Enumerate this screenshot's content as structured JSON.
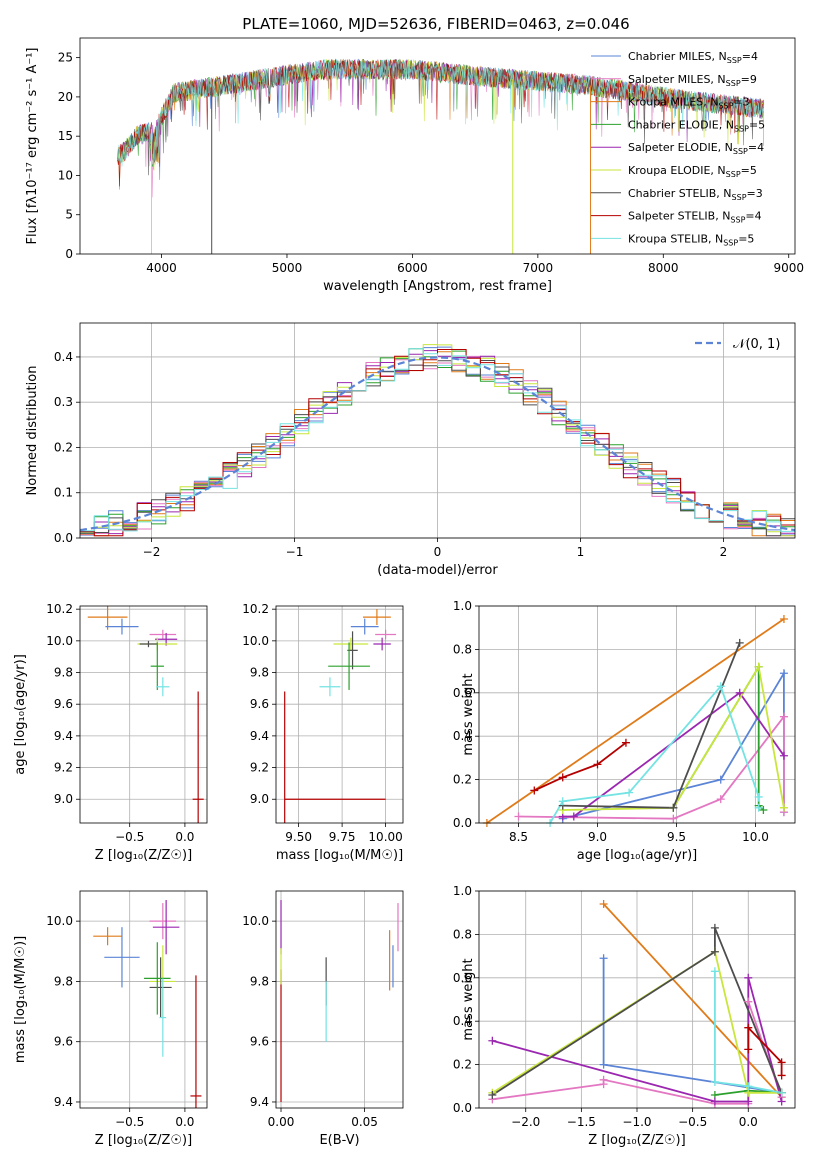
{
  "colors": {
    "Chabrier MILES": "#5b84d6",
    "Salpeter MILES": "#e377c2",
    "Kroupa MILES": "#e07b1a",
    "Chabrier ELODIE": "#2ca02c",
    "Salpeter ELODIE": "#9b27b0",
    "Kroupa ELODIE": "#c8e63c",
    "Chabrier STELIB": "#4d4d4d",
    "Salpeter STELIB": "#b40000",
    "Kroupa STELIB": "#74e3e3"
  },
  "chart_data": [
    {
      "id": "spectrum",
      "type": "line",
      "title": "PLATE=1060, MJD=52636, FIBERID=0463, z=0.046",
      "xlabel": "wavelength [Angstrom, rest frame]",
      "ylabel": "Flux [fλ10⁻¹⁷ erg cm⁻² s⁻¹ A⁻¹]",
      "xlim": [
        3350,
        9050
      ],
      "ylim": [
        0,
        27.5
      ],
      "xticks": [
        4000,
        5000,
        6000,
        7000,
        8000,
        9000
      ],
      "yticks": [
        0,
        5,
        10,
        15,
        20,
        25
      ],
      "legend_position": "top-right",
      "legend": [
        {
          "name": "Chabrier MILES",
          "label": "Chabrier MILES, N",
          "sub": "SSP",
          "tail": "=4"
        },
        {
          "name": "Salpeter MILES",
          "label": "Salpeter MILES, N",
          "sub": "SSP",
          "tail": "=9"
        },
        {
          "name": "Kroupa MILES",
          "label": "Kroupa MILES, N",
          "sub": "SSP",
          "tail": "=3"
        },
        {
          "name": "Chabrier ELODIE",
          "label": "Chabrier ELODIE, N",
          "sub": "SSP",
          "tail": "=5"
        },
        {
          "name": "Salpeter ELODIE",
          "label": "Salpeter ELODIE, N",
          "sub": "SSP",
          "tail": "=4"
        },
        {
          "name": "Kroupa ELODIE",
          "label": "Kroupa ELODIE, N",
          "sub": "SSP",
          "tail": "=5"
        },
        {
          "name": "Chabrier STELIB",
          "label": "Chabrier STELIB, N",
          "sub": "SSP",
          "tail": "=3"
        },
        {
          "name": "Salpeter STELIB",
          "label": "Salpeter STELIB, N",
          "sub": "SSP",
          "tail": "=4"
        },
        {
          "name": "Kroupa STELIB",
          "label": "Kroupa STELIB, N",
          "sub": "SSP",
          "tail": "=5"
        }
      ],
      "continuum": {
        "x": [
          3650,
          3700,
          3800,
          3900,
          4000,
          4100,
          4300,
          4500,
          4700,
          5000,
          5300,
          5600,
          6000,
          6300,
          6600,
          7000,
          7400,
          7800,
          8200,
          8800
        ],
        "y": [
          12.5,
          13,
          15,
          15.5,
          17.5,
          20.5,
          21,
          21.5,
          22,
          22.8,
          23.5,
          23.5,
          23.5,
          23,
          22.5,
          22,
          21.5,
          20.5,
          19.5,
          18.5
        ]
      },
      "range": [
        3650,
        8800
      ],
      "drops": [
        {
          "name": "Kroupa ELODIE",
          "x": 3920,
          "to": 0
        },
        {
          "name": "Chabrier STELIB",
          "x": 4400,
          "to": 0
        },
        {
          "name": "Kroupa ELODIE",
          "x": 6800,
          "to": 0
        },
        {
          "name": "Kroupa MILES",
          "x": 7420,
          "to": 0
        }
      ]
    },
    {
      "id": "residual-hist",
      "type": "line",
      "xlabel": "(data-model)/error",
      "ylabel": "Normed distribution",
      "xlim": [
        -2.5,
        2.5
      ],
      "ylim": [
        0,
        0.475
      ],
      "xticks": [
        -2,
        -1,
        0,
        1,
        2
      ],
      "xticklabels": [
        "−2",
        "−1",
        "0",
        "1",
        "2"
      ],
      "yticks": [
        0.0,
        0.1,
        0.2,
        0.3,
        0.4
      ],
      "yticklabels": [
        "0.0",
        "0.1",
        "0.2",
        "0.3",
        "0.4"
      ],
      "bin_width": 0.1,
      "bin_start": -2.5,
      "gaussian_label": "𝒩(0, 1)",
      "gaussian_color": "#5b84d6"
    },
    {
      "id": "age-vs-Z",
      "type": "scatter",
      "xlabel": "Z [log₁₀(Z/Z☉)]",
      "ylabel": "age  [log₁₀(age/yr)]",
      "xlim": [
        -0.95,
        0.2
      ],
      "ylim": [
        8.85,
        10.22
      ],
      "xticks": [
        -0.5,
        0.0
      ],
      "xticklabels": [
        "−0.5",
        "0.0"
      ],
      "yticks": [
        9.0,
        9.2,
        9.4,
        9.6,
        9.8,
        10.0,
        10.2
      ],
      "yticklabels": [
        "9.0",
        "9.2",
        "9.4",
        "9.6",
        "9.8",
        "10.0",
        "10.2"
      ],
      "points": [
        {
          "name": "Kroupa MILES",
          "x": -0.7,
          "y": 10.15,
          "xerr": 0.18,
          "yerr": 0.08
        },
        {
          "name": "Chabrier MILES",
          "x": -0.57,
          "y": 10.09,
          "xerr": 0.15,
          "yerr": 0.05
        },
        {
          "name": "Salpeter MILES",
          "x": -0.2,
          "y": 10.04,
          "xerr": 0.12,
          "yerr": 0.03
        },
        {
          "name": "Salpeter ELODIE",
          "x": -0.17,
          "y": 10.01,
          "xerr": 0.1,
          "yerr": 0.04
        },
        {
          "name": "Kroupa ELODIE",
          "x": -0.25,
          "y": 9.98,
          "xerr": 0.18,
          "yerr": 0.04
        },
        {
          "name": "Chabrier STELIB",
          "x": -0.33,
          "y": 9.98,
          "xerr": 0.08,
          "yerr": 0.02
        },
        {
          "name": "Chabrier ELODIE",
          "x": -0.25,
          "y": 9.84,
          "xerr": 0.06,
          "yerr": 0.15
        },
        {
          "name": "Kroupa STELIB",
          "x": -0.2,
          "y": 9.71,
          "xerr": 0.06,
          "yerr": 0.06
        },
        {
          "name": "Salpeter STELIB",
          "x": 0.12,
          "y": 9.0,
          "xerr": 0.05,
          "yerr": 0.68
        }
      ]
    },
    {
      "id": "age-vs-mass",
      "type": "scatter",
      "xlabel": "mass [log₁₀(M/M☉)]",
      "ylabel": "",
      "xlim": [
        9.37,
        10.1
      ],
      "ylim": [
        8.85,
        10.22
      ],
      "xticks": [
        9.5,
        9.75,
        10.0
      ],
      "xticklabels": [
        "9.50",
        "9.75",
        "10.00"
      ],
      "yticks": [
        9.0,
        9.2,
        9.4,
        9.6,
        9.8,
        10.0,
        10.2
      ],
      "yticklabels": [
        "9.0",
        "9.2",
        "9.4",
        "9.6",
        "9.8",
        "10.0",
        "10.2"
      ],
      "points": [
        {
          "name": "Kroupa MILES",
          "x": 9.95,
          "y": 10.15,
          "xerr": 0.08,
          "yerr": 0.05
        },
        {
          "name": "Chabrier MILES",
          "x": 9.88,
          "y": 10.09,
          "xerr": 0.08,
          "yerr": 0.05
        },
        {
          "name": "Salpeter MILES",
          "x": 10.0,
          "y": 10.04,
          "xerr": 0.06,
          "yerr": 0.03
        },
        {
          "name": "Salpeter ELODIE",
          "x": 9.98,
          "y": 9.98,
          "xerr": 0.05,
          "yerr": 0.04
        },
        {
          "name": "Kroupa ELODIE",
          "x": 9.8,
          "y": 9.98,
          "xerr": 0.1,
          "yerr": 0.04
        },
        {
          "name": "Chabrier STELIB",
          "x": 9.81,
          "y": 9.94,
          "xerr": 0.03,
          "yerr": 0.12
        },
        {
          "name": "Chabrier ELODIE",
          "x": 9.79,
          "y": 9.84,
          "xerr": 0.12,
          "yerr": 0.15
        },
        {
          "name": "Kroupa STELIB",
          "x": 9.68,
          "y": 9.71,
          "xerr": 0.06,
          "yerr": 0.06
        },
        {
          "name": "Salpeter STELIB",
          "x": 9.42,
          "y": 9.0,
          "xerr": 0.0,
          "yerr": 0.68,
          "xerr_hi": 0.58
        }
      ]
    },
    {
      "id": "weight-vs-age",
      "type": "line",
      "xlabel": "age  [log₁₀(age/yr)]",
      "ylabel": "mass weight",
      "xlim": [
        8.25,
        10.25
      ],
      "ylim": [
        0,
        1
      ],
      "xticks": [
        8.5,
        9.0,
        9.5,
        10.0
      ],
      "xticklabels": [
        "8.5",
        "9.0",
        "9.5",
        "10.0"
      ],
      "yticks": [
        0.0,
        0.2,
        0.4,
        0.6,
        0.8,
        1.0
      ],
      "yticklabels": [
        "0.0",
        "0.2",
        "0.4",
        "0.6",
        "0.8",
        "1.0"
      ],
      "series": [
        {
          "name": "Kroupa MILES",
          "x": [
            8.3,
            10.18
          ],
          "y": [
            0.0,
            0.94
          ]
        },
        {
          "name": "Chabrier MILES",
          "x": [
            8.78,
            9.78,
            10.18,
            10.18
          ],
          "y": [
            0.02,
            0.2,
            0.69,
            0.05
          ]
        },
        {
          "name": "Salpeter MILES",
          "x": [
            8.5,
            9.48,
            9.78,
            10.18,
            10.18
          ],
          "y": [
            0.03,
            0.02,
            0.11,
            0.49,
            0.05
          ]
        },
        {
          "name": "Chabrier ELODIE",
          "x": [
            9.48,
            10.02,
            10.02,
            10.05
          ],
          "y": [
            0.07,
            0.72,
            0.08,
            0.06
          ]
        },
        {
          "name": "Salpeter ELODIE",
          "x": [
            8.78,
            8.85,
            9.9,
            10.18
          ],
          "y": [
            0.03,
            0.03,
            0.6,
            0.31
          ]
        },
        {
          "name": "Kroupa ELODIE",
          "x": [
            8.78,
            9.48,
            10.02,
            10.18,
            10.18
          ],
          "y": [
            0.06,
            0.07,
            0.72,
            0.07,
            0.07
          ]
        },
        {
          "name": "Chabrier STELIB",
          "x": [
            8.78,
            9.48,
            9.9
          ],
          "y": [
            0.08,
            0.07,
            0.83
          ]
        },
        {
          "name": "Salpeter STELIB",
          "x": [
            8.6,
            8.78,
            9.0,
            9.18
          ],
          "y": [
            0.15,
            0.21,
            0.27,
            0.37
          ]
        },
        {
          "name": "Kroupa STELIB",
          "x": [
            8.7,
            8.78,
            9.2,
            9.78,
            10.02,
            10.02
          ],
          "y": [
            0.0,
            0.1,
            0.14,
            0.63,
            0.12,
            0.07
          ]
        }
      ]
    },
    {
      "id": "mass-vs-Z",
      "type": "scatter",
      "xlabel": "Z [log₁₀(Z/Z☉)]",
      "ylabel": "mass [log₁₀(M/M☉)]",
      "xlim": [
        -0.95,
        0.2
      ],
      "ylim": [
        9.38,
        10.1
      ],
      "xticks": [
        -0.5,
        0.0
      ],
      "xticklabels": [
        "−0.5",
        "0.0"
      ],
      "yticks": [
        9.4,
        9.6,
        9.8,
        10.0
      ],
      "yticklabels": [
        "9.4",
        "9.6",
        "9.8",
        "10.0"
      ],
      "points": [
        {
          "name": "Kroupa MILES",
          "x": -0.7,
          "y": 9.95,
          "xerr": 0.13,
          "yerr": 0.03
        },
        {
          "name": "Chabrier MILES",
          "x": -0.57,
          "y": 9.88,
          "xerr": 0.16,
          "yerr": 0.1
        },
        {
          "name": "Salpeter MILES",
          "x": -0.2,
          "y": 10.0,
          "xerr": 0.12,
          "yerr": 0.06
        },
        {
          "name": "Salpeter ELODIE",
          "x": -0.17,
          "y": 9.98,
          "xerr": 0.12,
          "yerr": 0.09
        },
        {
          "name": "Kroupa ELODIE",
          "x": -0.2,
          "y": 9.8,
          "xerr": 0.12,
          "yerr": 0.12
        },
        {
          "name": "Chabrier STELIB",
          "x": -0.22,
          "y": 9.78,
          "xerr": 0.1,
          "yerr": 0.1
        },
        {
          "name": "Chabrier ELODIE",
          "x": -0.25,
          "y": 9.81,
          "xerr": 0.12,
          "yerr": 0.12
        },
        {
          "name": "Kroupa STELIB",
          "x": -0.2,
          "y": 9.68,
          "xerr": 0.03,
          "yerr": 0.13
        },
        {
          "name": "Salpeter STELIB",
          "x": 0.1,
          "y": 9.42,
          "xerr": 0.05,
          "yerr": 0.4
        }
      ]
    },
    {
      "id": "mass-vs-EBV",
      "type": "scatter",
      "xlabel": "E(B-V)",
      "ylabel": "",
      "xlim": [
        -0.003,
        0.073
      ],
      "ylim": [
        9.38,
        10.1
      ],
      "xticks": [
        0.0,
        0.05
      ],
      "xticklabels": [
        "0.00",
        "0.05"
      ],
      "yticks": [
        9.4,
        9.6,
        9.8,
        10.0
      ],
      "yticklabels": [
        "9.4",
        "9.6",
        "9.8",
        "10.0"
      ],
      "points": [
        {
          "name": "Salpeter STELIB",
          "x": 0.0,
          "y": 9.62,
          "xerr": 0,
          "yerr": 0.22
        },
        {
          "name": "Salpeter ELODIE",
          "x": 0.0,
          "y": 9.98,
          "xerr": 0,
          "yerr": 0.09
        },
        {
          "name": "Kroupa ELODIE",
          "x": 0.0,
          "y": 9.85,
          "xerr": 0,
          "yerr": 0.06
        },
        {
          "name": "Chabrier STELIB",
          "x": 0.027,
          "y": 9.8,
          "xerr": 0,
          "yerr": 0.08
        },
        {
          "name": "Kroupa STELIB",
          "x": 0.027,
          "y": 9.7,
          "xerr": 0,
          "yerr": 0.1
        },
        {
          "name": "Kroupa MILES",
          "x": 0.065,
          "y": 9.87,
          "xerr": 0,
          "yerr": 0.1
        },
        {
          "name": "Chabrier MILES",
          "x": 0.067,
          "y": 9.85,
          "xerr": 0,
          "yerr": 0.07
        },
        {
          "name": "Salpeter MILES",
          "x": 0.07,
          "y": 9.98,
          "xerr": 0,
          "yerr": 0.08
        }
      ]
    },
    {
      "id": "weight-vs-Z",
      "type": "line",
      "xlabel": "Z [log₁₀(Z/Z☉)]",
      "ylabel": "mass weight",
      "xlim": [
        -2.42,
        0.42
      ],
      "ylim": [
        0,
        1
      ],
      "xticks": [
        -2.0,
        -1.5,
        -1.0,
        -0.5,
        0.0
      ],
      "xticklabels": [
        "−2.0",
        "−1.5",
        "−1.0",
        "−0.5",
        "0.0"
      ],
      "yticks": [
        0.0,
        0.2,
        0.4,
        0.6,
        0.8,
        1.0
      ],
      "yticklabels": [
        "0.0",
        "0.2",
        "0.4",
        "0.6",
        "0.8",
        "1.0"
      ],
      "series": [
        {
          "name": "Kroupa MILES",
          "x": [
            -1.3,
            0.3
          ],
          "y": [
            0.94,
            0.05
          ]
        },
        {
          "name": "Chabrier MILES",
          "x": [
            -1.3,
            -1.3,
            0.3
          ],
          "y": [
            0.69,
            0.2,
            0.07
          ]
        },
        {
          "name": "Salpeter MILES",
          "x": [
            -2.3,
            -1.3,
            -1.3,
            -0.3,
            0.0,
            0.0,
            0.3
          ],
          "y": [
            0.04,
            0.11,
            0.13,
            0.02,
            0.02,
            0.49,
            0.05
          ]
        },
        {
          "name": "Chabrier ELODIE",
          "x": [
            -0.3,
            0.0,
            0.3
          ],
          "y": [
            0.06,
            0.08,
            0.07
          ]
        },
        {
          "name": "Salpeter ELODIE",
          "x": [
            -2.3,
            -0.3,
            0.0,
            0.0,
            0.3
          ],
          "y": [
            0.31,
            0.03,
            0.03,
            0.6,
            0.03
          ]
        },
        {
          "name": "Kroupa ELODIE",
          "x": [
            -2.3,
            -0.3,
            0.0,
            0.3
          ],
          "y": [
            0.07,
            0.72,
            0.07,
            0.07
          ]
        },
        {
          "name": "Chabrier STELIB",
          "x": [
            -2.3,
            -0.3,
            -0.3,
            0.3
          ],
          "y": [
            0.06,
            0.72,
            0.83,
            0.07
          ]
        },
        {
          "name": "Salpeter STELIB",
          "x": [
            0.0,
            0.0,
            0.3,
            0.3
          ],
          "y": [
            0.27,
            0.37,
            0.21,
            0.15
          ]
        },
        {
          "name": "Kroupa STELIB",
          "x": [
            -0.3,
            -0.3,
            0.0,
            0.3
          ],
          "y": [
            0.63,
            0.12,
            0.1,
            0.07
          ]
        }
      ]
    }
  ]
}
